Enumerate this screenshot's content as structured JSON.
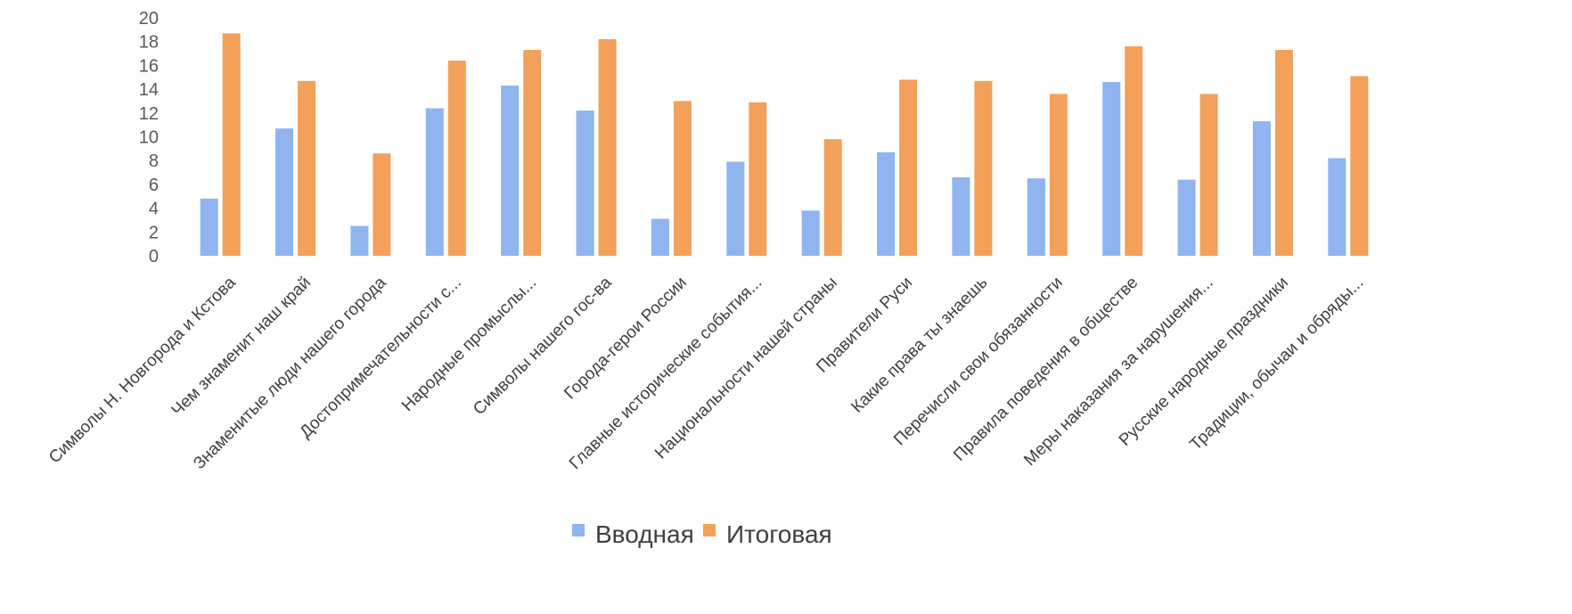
{
  "chart_data": {
    "type": "bar",
    "ylim": [
      0,
      20
    ],
    "yticks": [
      0,
      2,
      4,
      6,
      8,
      10,
      12,
      14,
      16,
      18,
      20
    ],
    "grid": false,
    "legend_position": "bottom",
    "categories": [
      "Символы Н. Новгорода и Кстова",
      "Чем знаменит наш край",
      "Знаменитые люди нашего города",
      "Достопримечательности      с...",
      "Народные промыслы...",
      "Символы нашего гос-ва",
      "Города-герои России",
      "Главные исторические события...",
      "Национальности нашей страны",
      "Правители Руси",
      "Какие права ты знаешь",
      "Перечисли свои обязанности",
      "Правила поведения в обществе",
      "Меры наказания за нарушения...",
      "Русские народные праздники",
      "Традиции, обычаи и обряды..."
    ],
    "series": [
      {
        "name": "Вводная",
        "color": "#8fb4f0",
        "values": [
          4.8,
          10.7,
          2.5,
          12.4,
          14.3,
          12.2,
          3.1,
          7.9,
          3.8,
          8.7,
          6.6,
          6.5,
          14.6,
          6.4,
          11.3,
          8.2
        ]
      },
      {
        "name": "Итоговая",
        "color": "#f3a05a",
        "values": [
          18.7,
          14.7,
          8.6,
          16.4,
          17.3,
          18.2,
          13.0,
          12.9,
          9.8,
          14.8,
          14.7,
          13.6,
          17.6,
          13.6,
          17.3,
          15.1
        ]
      }
    ]
  }
}
